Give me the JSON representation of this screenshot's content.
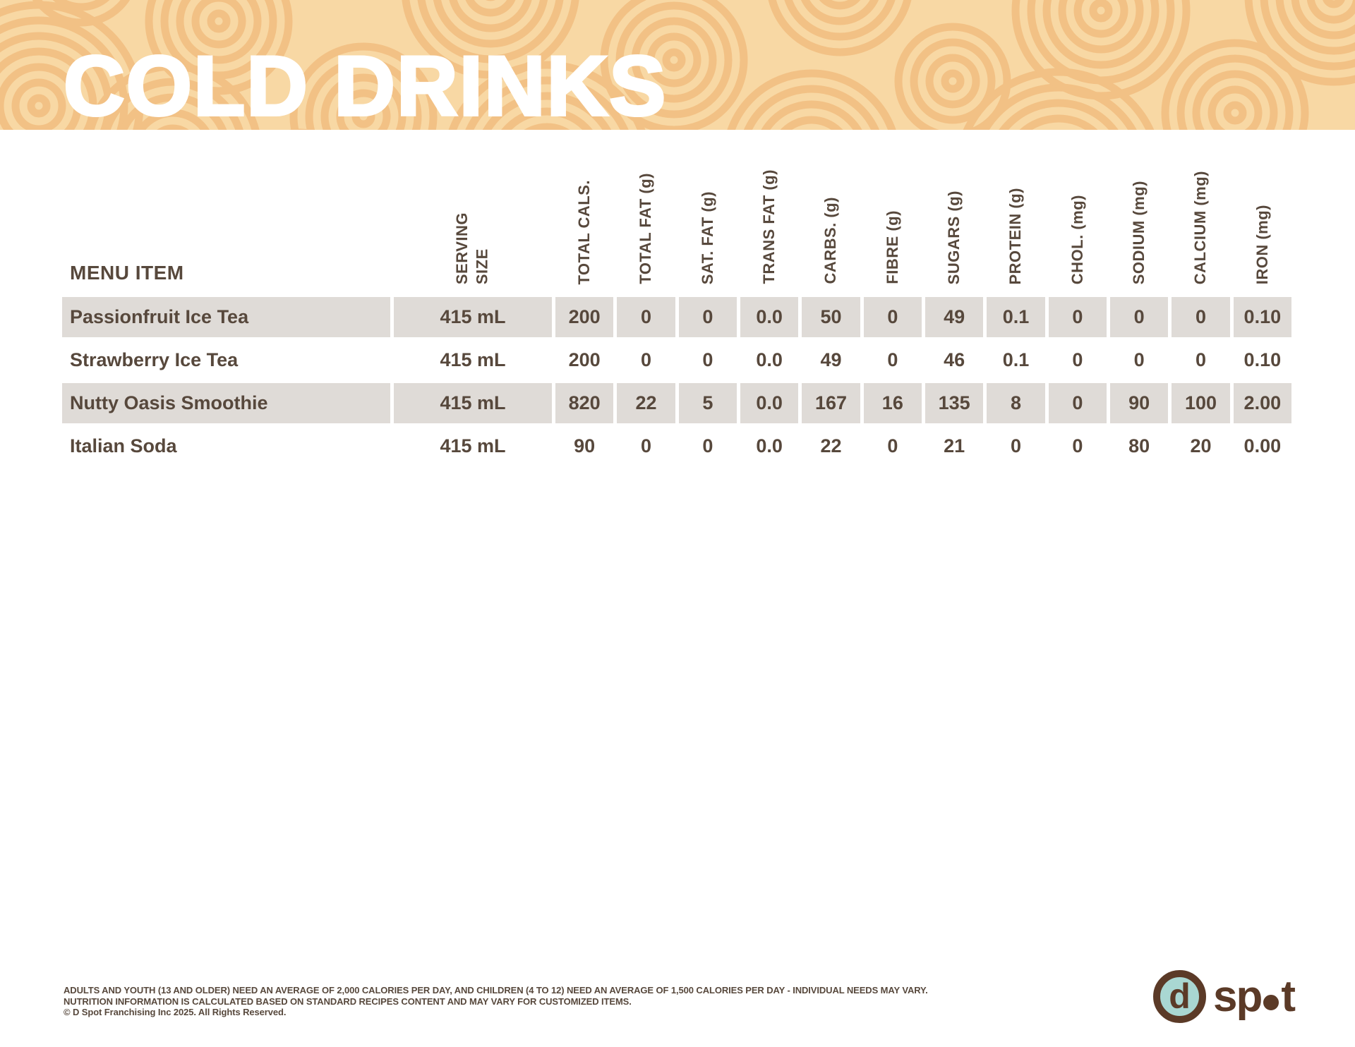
{
  "title": "COLD DRINKS",
  "table": {
    "menu_item_header": "MENU ITEM",
    "columns": [
      "SERVING\nSIZE",
      "TOTAL CALS.",
      "TOTAL FAT (g)",
      "SAT. FAT (g)",
      "TRANS FAT (g)",
      "CARBS. (g)",
      "FIBRE (g)",
      "SUGARS (g)",
      "PROTEIN (g)",
      "CHOL. (mg)",
      "SODIUM (mg)",
      "CALCIUM (mg)",
      "IRON (mg)"
    ],
    "rows": [
      {
        "name": "Passionfruit Ice Tea",
        "values": [
          "415 mL",
          "200",
          "0",
          "0",
          "0.0",
          "50",
          "0",
          "49",
          "0.1",
          "0",
          "0",
          "0",
          "0.10"
        ]
      },
      {
        "name": "Strawberry Ice Tea",
        "values": [
          "415 mL",
          "200",
          "0",
          "0",
          "0.0",
          "49",
          "0",
          "46",
          "0.1",
          "0",
          "0",
          "0",
          "0.10"
        ]
      },
      {
        "name": "Nutty Oasis Smoothie",
        "values": [
          "415 mL",
          "820",
          "22",
          "5",
          "0.0",
          "167",
          "16",
          "135",
          "8",
          "0",
          "90",
          "100",
          "2.00"
        ]
      },
      {
        "name": "Italian Soda",
        "values": [
          "415 mL",
          "90",
          "0",
          "0",
          "0.0",
          "22",
          "0",
          "21",
          "0",
          "0",
          "80",
          "20",
          "0.00"
        ]
      }
    ]
  },
  "footer": {
    "line1": "ADULTS AND YOUTH (13 AND OLDER) NEED AN AVERAGE OF 2,000 CALORIES PER DAY, AND CHILDREN (4 TO 12) NEED AN AVERAGE OF 1,500 CALORIES PER DAY - INDIVIDUAL NEEDS MAY VARY.",
    "line2": "NUTRITION INFORMATION IS CALCULATED BASED ON STANDARD RECIPES CONTENT AND MAY VARY FOR CUSTOMIZED ITEMS.",
    "line3": "© D Spot Franchising Inc 2025. All Rights Reserved."
  },
  "logo": {
    "monogram": "d",
    "word_part1": "sp",
    "word_part2": "t"
  },
  "colors": {
    "banner_bg": "#f8d8a4",
    "banner_ring": "#f2c185",
    "row_stripe": "#dfdbd7",
    "text_brown": "#57483c",
    "logo_brown": "#5b3a27",
    "logo_teal": "#a9d7d2"
  }
}
